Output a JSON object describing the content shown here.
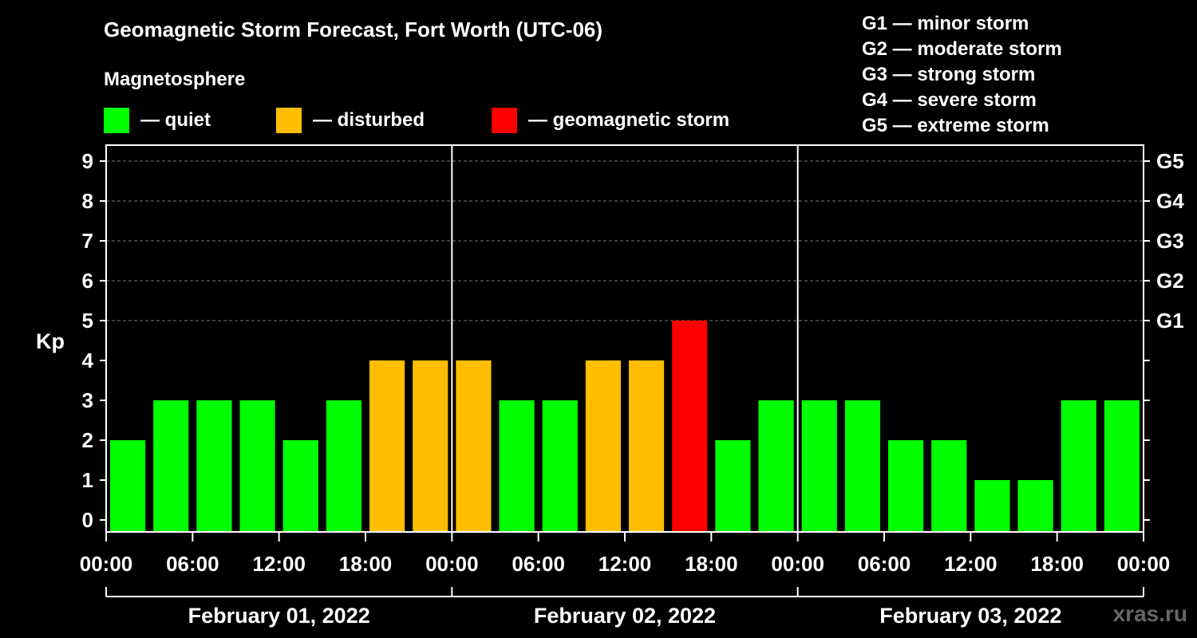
{
  "title": "Geomagnetic Storm Forecast, Fort Worth (UTC-06)",
  "subtitle": "Magnetosphere",
  "legend": [
    {
      "label": "— quiet",
      "color": "#00ff00"
    },
    {
      "label": "— disturbed",
      "color": "#ffbf00"
    },
    {
      "label": "— geomagnetic storm",
      "color": "#ff0000"
    }
  ],
  "gscale": [
    {
      "label": "G1 — minor storm"
    },
    {
      "label": "G2 — moderate storm"
    },
    {
      "label": "G3 — strong storm"
    },
    {
      "label": "G4 — severe storm"
    },
    {
      "label": "G5 — extreme storm"
    }
  ],
  "credit": "xras.ru",
  "chart_data": {
    "type": "bar",
    "ylabel": "Kp",
    "ylim": [
      0,
      9
    ],
    "yticks": [
      0,
      1,
      2,
      3,
      4,
      5,
      6,
      7,
      8,
      9
    ],
    "right_axis": {
      "labels": [
        "G1",
        "G2",
        "G3",
        "G4",
        "G5"
      ],
      "kp": [
        5,
        6,
        7,
        8,
        9
      ]
    },
    "grid": "horizontal dashed at Kp 5-9",
    "xticks": [
      "00:00",
      "06:00",
      "12:00",
      "18:00",
      "00:00",
      "06:00",
      "12:00",
      "18:00",
      "00:00",
      "06:00",
      "12:00",
      "18:00",
      "00:00"
    ],
    "days": [
      "February 01, 2022",
      "February 02, 2022",
      "February 03, 2022"
    ],
    "interval_hours": 3,
    "values": [
      2,
      3,
      3,
      3,
      2,
      3,
      4,
      4,
      4,
      3,
      3,
      4,
      4,
      5,
      2,
      3,
      3,
      3,
      2,
      2,
      1,
      1,
      3,
      3
    ],
    "levels": [
      "quiet",
      "quiet",
      "quiet",
      "quiet",
      "quiet",
      "quiet",
      "disturbed",
      "disturbed",
      "disturbed",
      "quiet",
      "quiet",
      "disturbed",
      "disturbed",
      "storm",
      "quiet",
      "quiet",
      "quiet",
      "quiet",
      "quiet",
      "quiet",
      "quiet",
      "quiet",
      "quiet",
      "quiet"
    ],
    "colors": {
      "quiet": "#00ff00",
      "disturbed": "#ffbf00",
      "storm": "#ff0000"
    }
  }
}
